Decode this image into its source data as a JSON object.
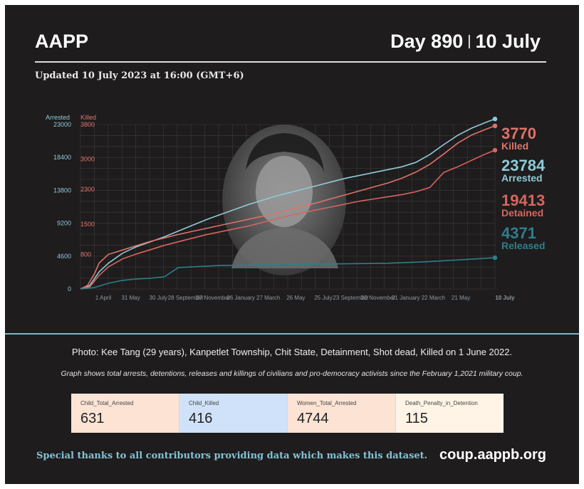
{
  "header": {
    "org": "AAPP",
    "day": "Day 890",
    "date": "10 July",
    "updated": "Updated 10 July 2023 at 16:00 (GMT+6)"
  },
  "colors": {
    "arrested": "#8fcbd8",
    "killed": "#e0736a",
    "detained": "#d9655f",
    "released": "#2d7f8b",
    "background": "#1e1c1d"
  },
  "chart_data": {
    "type": "line",
    "left_axis": {
      "title": "Arrested",
      "ticks": [
        0,
        4600,
        9200,
        13800,
        18400,
        23000
      ],
      "ylim": [
        0,
        23000
      ]
    },
    "right_axis": {
      "title": "Killed",
      "ticks": [
        0,
        800,
        1500,
        2300,
        3000,
        3800
      ],
      "ylim": [
        0,
        3800
      ]
    },
    "x_ticks": [
      "1 April",
      "31 May",
      "30 July",
      "28 September",
      "27 November",
      "26 January",
      "27 March",
      "26 May",
      "25 July",
      "23 September",
      "22 November",
      "21 January",
      "22 March",
      "21 May",
      "10 July"
    ],
    "x_range_days": [
      0,
      890
    ],
    "grid": true,
    "series": [
      {
        "name": "Arrested",
        "label": "Arrested",
        "value": "23784",
        "axis": "left",
        "end_value": 23784,
        "points": [
          [
            0,
            0
          ],
          [
            20,
            500
          ],
          [
            40,
            2400
          ],
          [
            60,
            3600
          ],
          [
            90,
            5000
          ],
          [
            120,
            5900
          ],
          [
            150,
            6600
          ],
          [
            180,
            7300
          ],
          [
            210,
            8100
          ],
          [
            240,
            8900
          ],
          [
            270,
            9700
          ],
          [
            300,
            10400
          ],
          [
            330,
            11100
          ],
          [
            360,
            11800
          ],
          [
            390,
            12400
          ],
          [
            420,
            13000
          ],
          [
            450,
            13500
          ],
          [
            480,
            14000
          ],
          [
            510,
            14500
          ],
          [
            540,
            15000
          ],
          [
            570,
            15500
          ],
          [
            600,
            15900
          ],
          [
            630,
            16300
          ],
          [
            660,
            16700
          ],
          [
            690,
            17100
          ],
          [
            720,
            17700
          ],
          [
            750,
            18800
          ],
          [
            780,
            20200
          ],
          [
            810,
            21500
          ],
          [
            840,
            22500
          ],
          [
            870,
            23300
          ],
          [
            890,
            23784
          ]
        ]
      },
      {
        "name": "Killed",
        "label": "Killed",
        "value": "3770",
        "axis": "right",
        "end_value": 3770,
        "points": [
          [
            0,
            0
          ],
          [
            15,
            80
          ],
          [
            30,
            350
          ],
          [
            40,
            600
          ],
          [
            60,
            800
          ],
          [
            90,
            900
          ],
          [
            120,
            1000
          ],
          [
            150,
            1100
          ],
          [
            180,
            1180
          ],
          [
            210,
            1260
          ],
          [
            240,
            1330
          ],
          [
            270,
            1400
          ],
          [
            300,
            1470
          ],
          [
            330,
            1540
          ],
          [
            360,
            1610
          ],
          [
            390,
            1680
          ],
          [
            420,
            1760
          ],
          [
            450,
            1840
          ],
          [
            480,
            1920
          ],
          [
            510,
            2000
          ],
          [
            540,
            2090
          ],
          [
            570,
            2180
          ],
          [
            600,
            2270
          ],
          [
            630,
            2360
          ],
          [
            660,
            2450
          ],
          [
            690,
            2560
          ],
          [
            720,
            2700
          ],
          [
            750,
            2880
          ],
          [
            780,
            3120
          ],
          [
            810,
            3370
          ],
          [
            840,
            3560
          ],
          [
            870,
            3690
          ],
          [
            890,
            3770
          ]
        ]
      },
      {
        "name": "Detained",
        "label": "Detained",
        "value": "19413",
        "axis": "left",
        "end_value": 19413,
        "points": [
          [
            0,
            0
          ],
          [
            20,
            300
          ],
          [
            40,
            1900
          ],
          [
            60,
            3100
          ],
          [
            90,
            4200
          ],
          [
            120,
            4900
          ],
          [
            150,
            5500
          ],
          [
            180,
            6100
          ],
          [
            210,
            6600
          ],
          [
            240,
            7100
          ],
          [
            270,
            7600
          ],
          [
            300,
            8000
          ],
          [
            330,
            8400
          ],
          [
            360,
            8800
          ],
          [
            390,
            9300
          ],
          [
            420,
            9800
          ],
          [
            450,
            10300
          ],
          [
            480,
            10700
          ],
          [
            510,
            11100
          ],
          [
            540,
            11500
          ],
          [
            570,
            11900
          ],
          [
            600,
            12300
          ],
          [
            630,
            12600
          ],
          [
            660,
            12900
          ],
          [
            690,
            13200
          ],
          [
            720,
            13600
          ],
          [
            750,
            14200
          ],
          [
            780,
            16300
          ],
          [
            810,
            17100
          ],
          [
            840,
            18000
          ],
          [
            870,
            18900
          ],
          [
            890,
            19413
          ]
        ]
      },
      {
        "name": "Released",
        "label": "Released",
        "value": "4371",
        "axis": "left",
        "end_value": 4371,
        "points": [
          [
            0,
            0
          ],
          [
            30,
            200
          ],
          [
            60,
            800
          ],
          [
            90,
            1200
          ],
          [
            120,
            1400
          ],
          [
            150,
            1500
          ],
          [
            180,
            1700
          ],
          [
            210,
            3000
          ],
          [
            240,
            3100
          ],
          [
            270,
            3200
          ],
          [
            300,
            3300
          ],
          [
            360,
            3350
          ],
          [
            420,
            3400
          ],
          [
            480,
            3450
          ],
          [
            540,
            3500
          ],
          [
            600,
            3550
          ],
          [
            660,
            3600
          ],
          [
            700,
            3700
          ],
          [
            740,
            3800
          ],
          [
            780,
            3950
          ],
          [
            820,
            4100
          ],
          [
            860,
            4250
          ],
          [
            890,
            4371
          ]
        ]
      }
    ]
  },
  "photo": {
    "caption": "Photo: Kee Tang (29 years), Kanpetlet Township, Chit State, Detainment, Shot dead, Killed on 1 June 2022."
  },
  "graph_note": "Graph shows total arrests, detentions, releases and killings of civilians and pro-democracy activists since the February 1,2021 military coup.",
  "stats": [
    {
      "label": "Child_Total_Arrested",
      "value": "631",
      "color": "#fde3d4"
    },
    {
      "label": "Child_Killed",
      "value": "416",
      "color": "#cfe2f9"
    },
    {
      "label": "Women_Total_Arrested",
      "value": "4744",
      "color": "#fde3d4"
    },
    {
      "label": "Death_Penalty_in_Detention",
      "value": "115",
      "color": "#fff4e6"
    }
  ],
  "footer": {
    "thanks": "Special thanks to all contributors providing data which makes this dataset.",
    "site": "coup.aappb.org"
  }
}
